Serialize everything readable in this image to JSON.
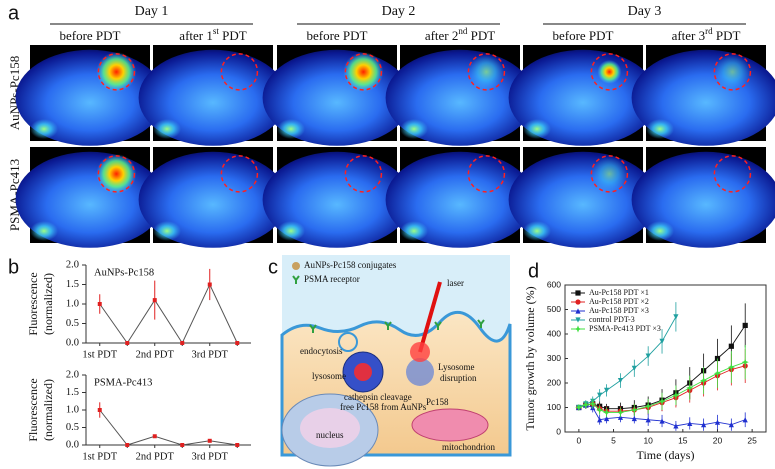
{
  "panel_a": {
    "label": "a",
    "days": [
      "Day 1",
      "Day 2",
      "Day 3"
    ],
    "columns": [
      "before PDT",
      {
        "pre": "after 1",
        "sup": "st",
        "post": " PDT"
      },
      "before PDT",
      {
        "pre": "after 2",
        "sup": "nd",
        "post": " PDT"
      },
      "before PDT",
      {
        "pre": "after 3",
        "sup": "rd",
        "post": " PDT"
      }
    ],
    "rows": [
      "AuNPs-Pc158",
      "PSMA-Pc413"
    ]
  },
  "panel_labels": {
    "b": "b",
    "c": "c",
    "d": "d"
  },
  "panel_c": {
    "conjugates": "AuNPs-Pc158 conjugates",
    "receptor": "PSMA receptor",
    "laser": "laser",
    "endocytosis": "endocytosis",
    "lysosome": "lysosome",
    "cleavage": "cathepsin cleavage",
    "free": "free Pc158 from AuNPs",
    "disruption": [
      "Lysosome",
      "disruption"
    ],
    "pc158": "Pc158",
    "nucleus": "nucleus",
    "mitochondrion": "mitochondrion"
  },
  "chart_data": [
    {
      "type": "line",
      "annotation": "AuNPs-Pc158",
      "ylabel": [
        "Fluorescence",
        "(normalized)"
      ],
      "color": "#e02020",
      "categories": [
        "1st PDT",
        null,
        "2nd PDT",
        null,
        "3rd PDT",
        null
      ],
      "values": [
        1.0,
        0,
        1.1,
        0,
        1.5,
        0
      ],
      "errors": [
        0.25,
        0,
        0.5,
        0,
        0.4,
        0
      ],
      "ylim": [
        0,
        2
      ],
      "yticks": [
        {
          "value": 0,
          "label": "0.0"
        },
        {
          "value": 0.5,
          "label": "0.5"
        },
        {
          "value": 1,
          "label": "1.0"
        },
        {
          "value": 1.5,
          "label": "1.5"
        },
        {
          "value": 2,
          "label": "2.0"
        }
      ]
    },
    {
      "type": "line",
      "annotation": "PSMA-Pc413",
      "ylabel": [
        "Fluorescence",
        "(normalized)"
      ],
      "color": "#e02020",
      "categories": [
        "1st PDT",
        null,
        "2nd PDT",
        null,
        "3rd PDT",
        null
      ],
      "values": [
        1.0,
        0,
        0.25,
        0,
        0.12,
        0
      ],
      "errors": [
        0.22,
        0,
        0.03,
        0,
        0.02,
        0
      ],
      "ylim": [
        0,
        2
      ],
      "yticks": [
        {
          "value": 0,
          "label": "0.0"
        },
        {
          "value": 0.5,
          "label": "0.5"
        },
        {
          "value": 1,
          "label": "1.0"
        },
        {
          "value": 1.5,
          "label": "1.5"
        },
        {
          "value": 2,
          "label": "2.0"
        }
      ]
    },
    {
      "type": "scatter-line",
      "xlabel": "Time (days)",
      "ylabel": "Tumor growth by volume (%)",
      "x": [
        0,
        1,
        2,
        3,
        4,
        6,
        8,
        10,
        12,
        14,
        16,
        18,
        20,
        22,
        24
      ],
      "xlim": [
        -2,
        27
      ],
      "xticks": [
        0,
        5,
        10,
        15,
        20,
        25
      ],
      "ylim": [
        0,
        600
      ],
      "yticks": [
        0,
        100,
        200,
        300,
        400,
        500,
        600
      ],
      "series": [
        {
          "name": "Au-Pc158 PDT ×1",
          "color": "#111111",
          "marker": "square",
          "values": [
            100,
            110,
            115,
            105,
            95,
            95,
            100,
            110,
            130,
            160,
            200,
            250,
            300,
            350,
            435
          ],
          "errors": [
            10,
            15,
            20,
            20,
            20,
            25,
            30,
            35,
            45,
            55,
            65,
            70,
            80,
            85,
            90
          ]
        },
        {
          "name": "Au-Pc158 PDT ×2",
          "color": "#e02020",
          "marker": "circle",
          "values": [
            100,
            110,
            115,
            95,
            85,
            85,
            90,
            100,
            120,
            140,
            170,
            200,
            230,
            255,
            270
          ],
          "errors": [
            10,
            15,
            20,
            20,
            20,
            20,
            25,
            30,
            35,
            40,
            50,
            55,
            60,
            65,
            70
          ]
        },
        {
          "name": "Au-Pc158 PDT ×3",
          "color": "#2030d0",
          "marker": "triangle",
          "values": [
            100,
            110,
            100,
            50,
            55,
            60,
            55,
            50,
            45,
            25,
            35,
            30,
            40,
            30,
            50
          ],
          "errors": [
            10,
            15,
            20,
            20,
            20,
            20,
            20,
            25,
            25,
            20,
            25,
            25,
            30,
            25,
            30
          ]
        },
        {
          "name": "control PDT-3",
          "color": "#20a0a0",
          "marker": "triangle-down",
          "values": [
            100,
            115,
            125,
            150,
            170,
            210,
            260,
            310,
            370,
            470,
            null,
            null,
            null,
            null,
            null
          ],
          "errors": [
            10,
            15,
            20,
            25,
            25,
            30,
            35,
            40,
            50,
            60,
            null,
            null,
            null,
            null,
            null
          ]
        },
        {
          "name": "PSMA-Pc413 PDT ×3",
          "color": "#40e040",
          "marker": "star",
          "values": [
            100,
            110,
            115,
            90,
            80,
            80,
            90,
            105,
            125,
            150,
            180,
            210,
            240,
            265,
            285
          ],
          "errors": [
            10,
            15,
            20,
            20,
            20,
            20,
            25,
            30,
            35,
            40,
            50,
            55,
            60,
            65,
            70
          ]
        }
      ]
    }
  ]
}
